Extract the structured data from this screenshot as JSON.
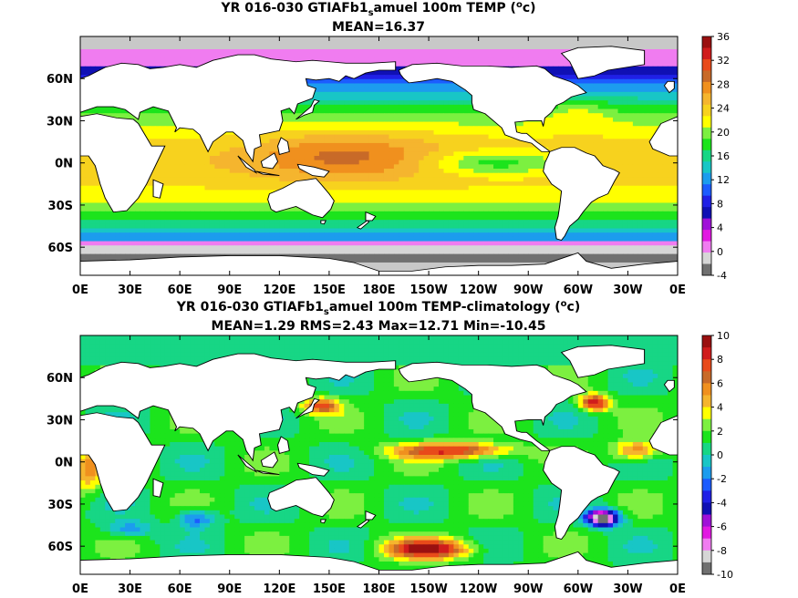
{
  "panels": [
    {
      "title_main": "YR 016-030 GTIAFb1",
      "title_sub": "s",
      "title_rest": "amuel 100m TEMP (",
      "title_deg": "o",
      "title_unit": "c)",
      "stats": "MEAN=16.37",
      "field": "temperature",
      "colorbar": {
        "labels": [
          "36",
          "32",
          "28",
          "24",
          "20",
          "16",
          "12",
          "8",
          "4",
          "0",
          "-4"
        ],
        "colors": [
          "#9a1010",
          "#d01c1c",
          "#e84a1a",
          "#c86a28",
          "#f0901e",
          "#f5b52e",
          "#f7d21e",
          "#ffff00",
          "#7cf040",
          "#1ce41c",
          "#17d685",
          "#18c6c6",
          "#1c9cee",
          "#1c5cff",
          "#2020e6",
          "#1010b4",
          "#a010d8",
          "#e218e2",
          "#f07cf0",
          "#d6d6d6",
          "#707070"
        ],
        "min": -4,
        "max": 36
      }
    },
    {
      "title_main": "YR 016-030 GTIAFb1",
      "title_sub": "s",
      "title_rest": "amuel 100m TEMP-climatology (",
      "title_deg": "o",
      "title_unit": "c)",
      "stats": "MEAN=1.29   RMS=2.43   Max=12.71   Min=-10.45",
      "field": "anomaly",
      "colorbar": {
        "labels": [
          "10",
          "8",
          "6",
          "4",
          "2",
          "0",
          "-2",
          "-4",
          "-6",
          "-8",
          "-10"
        ],
        "colors": [
          "#9a1010",
          "#d01c1c",
          "#e84a1a",
          "#c86a28",
          "#f0901e",
          "#f5b52e",
          "#ffff00",
          "#7cf040",
          "#1ce41c",
          "#17d685",
          "#18c6c6",
          "#1c9cee",
          "#1c5cff",
          "#2020e6",
          "#1010b4",
          "#a010d8",
          "#e218e2",
          "#f07cf0",
          "#d6d6d6",
          "#707070"
        ],
        "min": -10,
        "max": 10
      }
    }
  ],
  "x_ticks": [
    "0E",
    "30E",
    "60E",
    "90E",
    "120E",
    "150E",
    "180E",
    "150W",
    "120W",
    "90W",
    "60W",
    "30W",
    "0E"
  ],
  "y_ticks": [
    "60N",
    "30N",
    "0N",
    "30S",
    "60S"
  ],
  "y_values": [
    60,
    30,
    0,
    -30,
    -60
  ],
  "lat_range": [
    -80,
    90
  ],
  "lon_range": [
    0,
    360
  ],
  "land_color": "#ffffff",
  "coast_color": "#000000"
}
